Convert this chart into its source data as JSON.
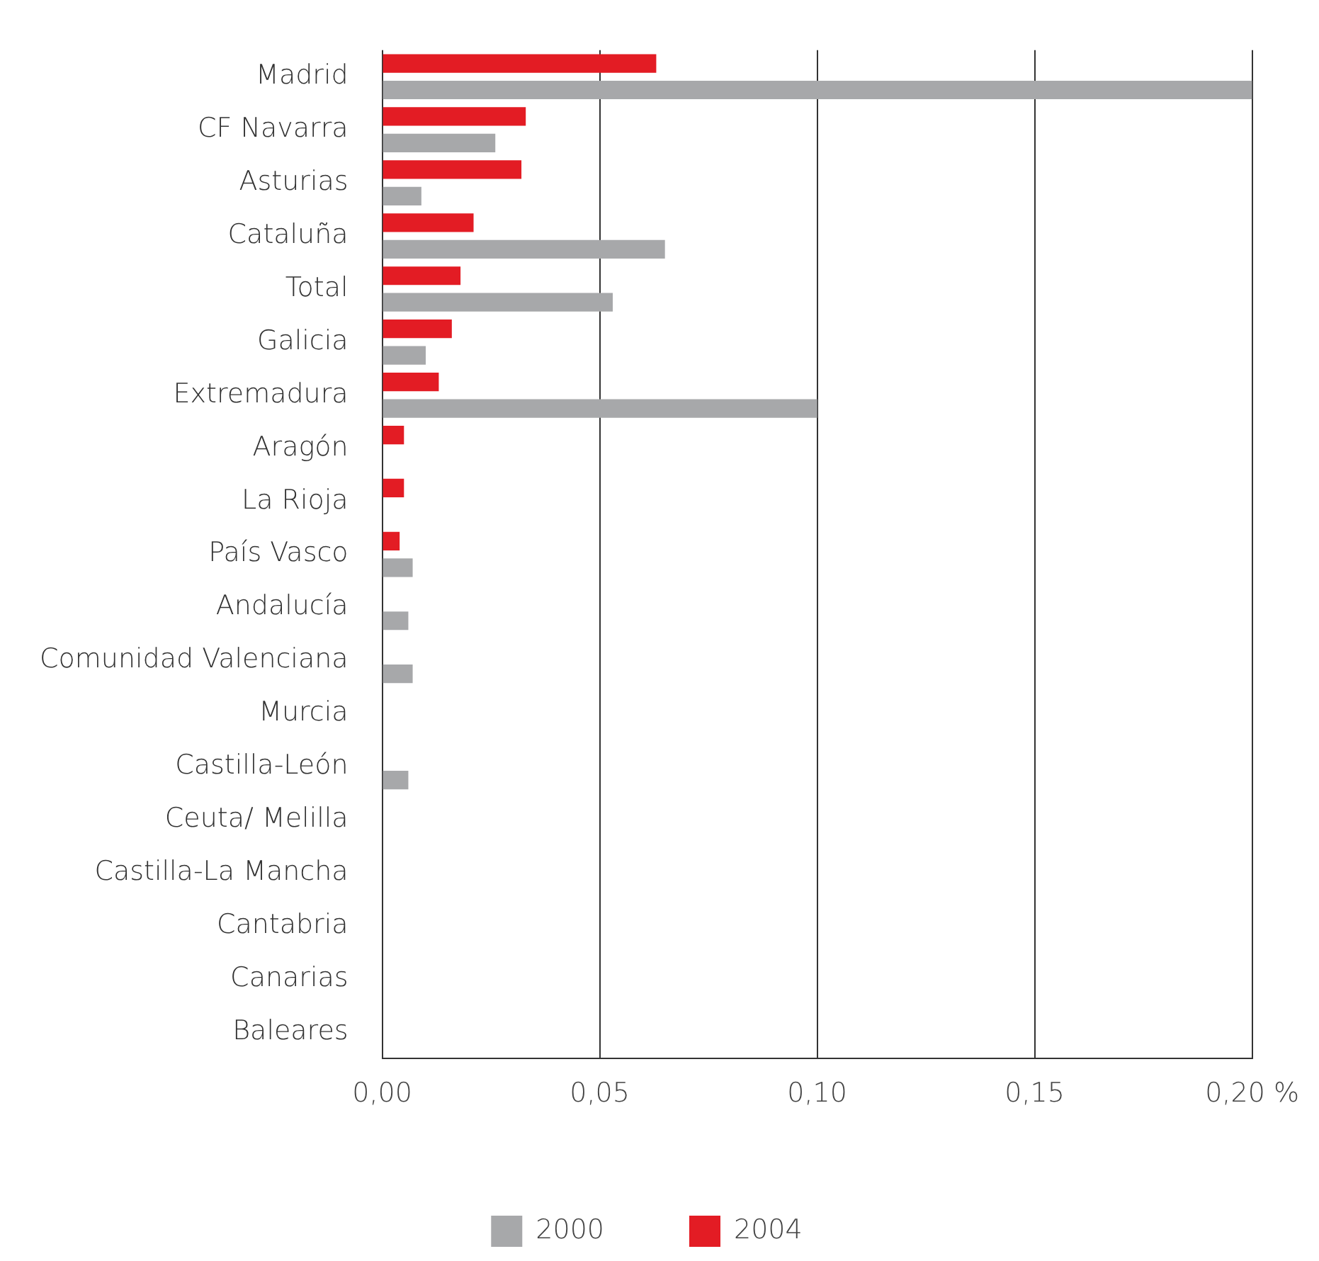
{
  "chart_data": {
    "type": "bar",
    "orientation": "horizontal",
    "categories": [
      "Madrid",
      "CF Navarra",
      "Asturias",
      "Cataluña",
      "Total",
      "Galicia",
      "Extremadura",
      "Aragón",
      "La Rioja",
      "País Vasco",
      "Andalucía",
      "Comunidad Valenciana",
      "Murcia",
      "Castilla-León",
      "Ceuta/ Melilla",
      "Castilla-La Mancha",
      "Cantabria",
      "Canarias",
      "Baleares"
    ],
    "series": [
      {
        "name": "2000",
        "color": "#a7a8aa",
        "values": [
          0.2,
          0.026,
          0.009,
          0.065,
          0.053,
          0.01,
          0.1,
          0,
          0,
          0.007,
          0.006,
          0.007,
          0,
          0.006,
          0,
          0,
          0,
          0,
          0
        ]
      },
      {
        "name": "2004",
        "color": "#e31c24",
        "values": [
          0.063,
          0.033,
          0.032,
          0.021,
          0.018,
          0.016,
          0.013,
          0.005,
          0.005,
          0.004,
          0,
          0,
          0,
          0,
          0,
          0,
          0,
          0,
          0
        ]
      }
    ],
    "xlim": [
      0,
      0.2
    ],
    "xticks": [
      {
        "value": 0,
        "label": "0,00"
      },
      {
        "value": 0.05,
        "label": "0,05"
      },
      {
        "value": 0.1,
        "label": "0,10"
      },
      {
        "value": 0.15,
        "label": "0,15"
      },
      {
        "value": 0.2,
        "label": "0,20 %"
      }
    ],
    "grid": "x",
    "legend": "bottom"
  }
}
